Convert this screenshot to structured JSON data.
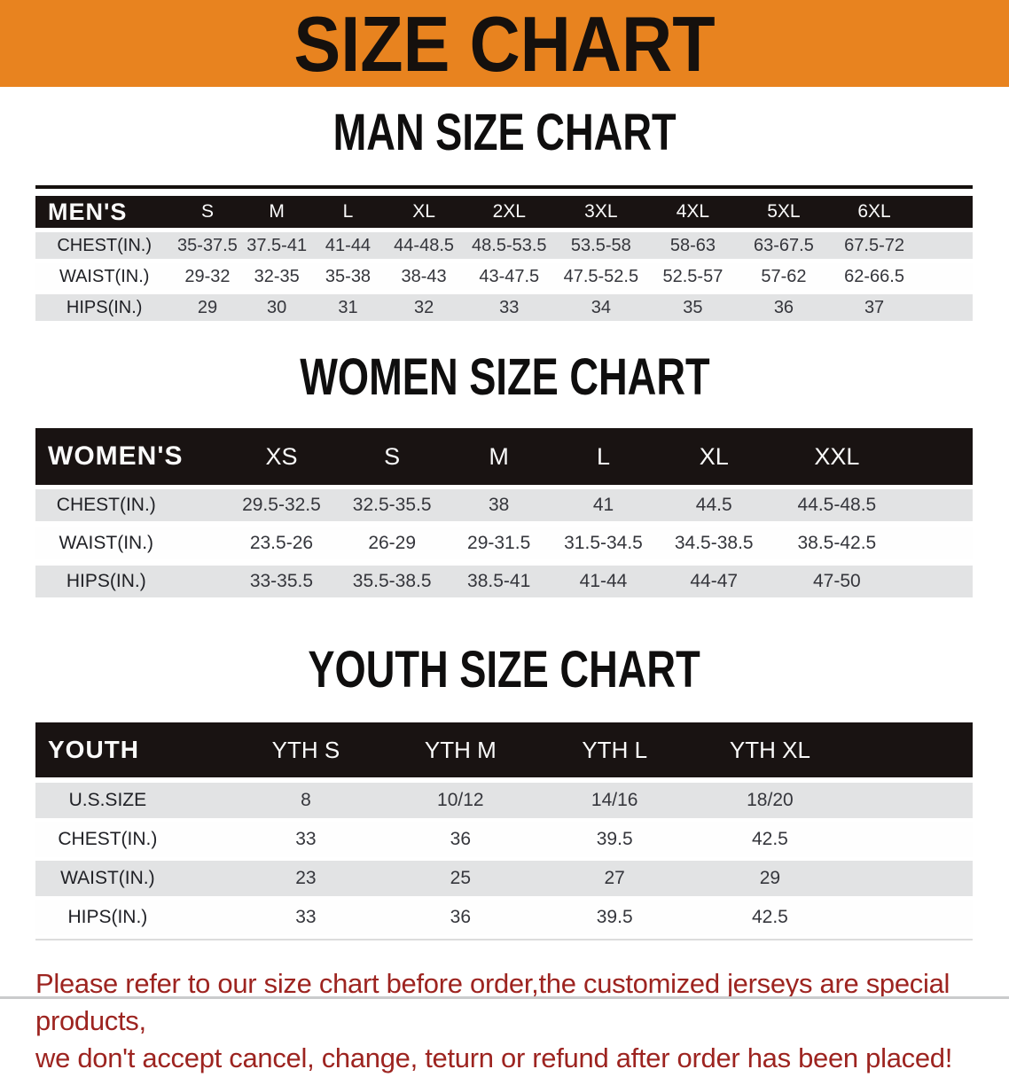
{
  "banner": {
    "title": "SIZE CHART"
  },
  "colors": {
    "banner_bg": "#E8831F",
    "table_header_bg": "#191312",
    "row_alt_bg": "#E2E3E4",
    "footer_text": "#9D2420"
  },
  "sections": [
    {
      "title": "MAN SIZE CHART",
      "header_label": "MEN'S",
      "columns": [
        "S",
        "M",
        "L",
        "XL",
        "2XL",
        "3XL",
        "4XL",
        "5XL",
        "6XL"
      ],
      "rows": [
        {
          "label": "CHEST(IN.)",
          "values": [
            "35-37.5",
            "37.5-41",
            "41-44",
            "44-48.5",
            "48.5-53.5",
            "53.5-58",
            "58-63",
            "63-67.5",
            "67.5-72"
          ]
        },
        {
          "label": "WAIST(IN.)",
          "values": [
            "29-32",
            "32-35",
            "35-38",
            "38-43",
            "43-47.5",
            "47.5-52.5",
            "52.5-57",
            "57-62",
            "62-66.5"
          ]
        },
        {
          "label": "HIPS(IN.)",
          "values": [
            "29",
            "30",
            "31",
            "32",
            "33",
            "34",
            "35",
            "36",
            "37"
          ]
        }
      ]
    },
    {
      "title": "WOMEN SIZE CHART",
      "header_label": "WOMEN'S",
      "columns": [
        "XS",
        "S",
        "M",
        "L",
        "XL",
        "XXL"
      ],
      "rows": [
        {
          "label": "CHEST(IN.)",
          "values": [
            "29.5-32.5",
            "32.5-35.5",
            "38",
            "41",
            "44.5",
            "44.5-48.5"
          ]
        },
        {
          "label": "WAIST(IN.)",
          "values": [
            "23.5-26",
            "26-29",
            "29-31.5",
            "31.5-34.5",
            "34.5-38.5",
            "38.5-42.5"
          ]
        },
        {
          "label": "HIPS(IN.)",
          "values": [
            "33-35.5",
            "35.5-38.5",
            "38.5-41",
            "41-44",
            "44-47",
            "47-50"
          ]
        }
      ]
    },
    {
      "title": "YOUTH SIZE CHART",
      "header_label": "YOUTH",
      "columns": [
        "YTH S",
        "YTH M",
        "YTH L",
        "YTH XL"
      ],
      "rows": [
        {
          "label": "U.S.SIZE",
          "values": [
            "8",
            "10/12",
            "14/16",
            "18/20"
          ]
        },
        {
          "label": "CHEST(IN.)",
          "values": [
            "33",
            "36",
            "39.5",
            "42.5"
          ]
        },
        {
          "label": "WAIST(IN.)",
          "values": [
            "23",
            "25",
            "27",
            "29"
          ]
        },
        {
          "label": "HIPS(IN.)",
          "values": [
            "33",
            "36",
            "39.5",
            "42.5"
          ]
        }
      ]
    }
  ],
  "footer": {
    "line1": "Please refer to our size chart before order,the customized jerseys are special products,",
    "line2": "we don't accept cancel, change, teturn or refund after order has been placed!"
  }
}
